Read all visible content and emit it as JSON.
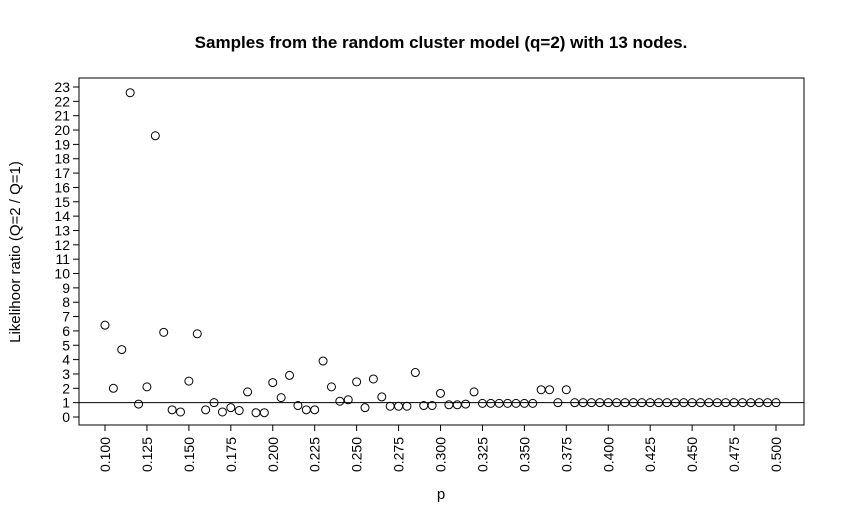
{
  "chart_data": {
    "type": "scatter",
    "title": "Samples from the random cluster model (q=2) with 13 nodes.",
    "xlabel": "p",
    "ylabel": "Likelihoor ratio (Q=2 / Q=1)",
    "xlim": [
      0.1,
      0.5
    ],
    "ylim": [
      0,
      23
    ],
    "x_ticks": [
      "0.100",
      "0.125",
      "0.150",
      "0.175",
      "0.200",
      "0.225",
      "0.250",
      "0.275",
      "0.300",
      "0.325",
      "0.350",
      "0.375",
      "0.400",
      "0.425",
      "0.450",
      "0.475",
      "0.500"
    ],
    "y_ticks": [
      "0",
      "1",
      "2",
      "3",
      "4",
      "5",
      "6",
      "7",
      "8",
      "9",
      "10",
      "11",
      "12",
      "13",
      "14",
      "15",
      "16",
      "17",
      "18",
      "19",
      "20",
      "21",
      "22",
      "23"
    ],
    "reference_line_y": 1,
    "marker": "open-circle",
    "grid": false,
    "series": [
      {
        "x": [
          0.1,
          0.105,
          0.11,
          0.115,
          0.12,
          0.125,
          0.13,
          0.135,
          0.14,
          0.145,
          0.15,
          0.155,
          0.16,
          0.165,
          0.17,
          0.175,
          0.18,
          0.185,
          0.19,
          0.195,
          0.2,
          0.205,
          0.21,
          0.215,
          0.22,
          0.225,
          0.23,
          0.235,
          0.24,
          0.245,
          0.25,
          0.255,
          0.26,
          0.265,
          0.27,
          0.275,
          0.28,
          0.285,
          0.29,
          0.295,
          0.3,
          0.305,
          0.31,
          0.315,
          0.32,
          0.325,
          0.33,
          0.335,
          0.34,
          0.345,
          0.35,
          0.355,
          0.36,
          0.365,
          0.37,
          0.375,
          0.38,
          0.385,
          0.39,
          0.395,
          0.4,
          0.405,
          0.41,
          0.415,
          0.42,
          0.425,
          0.43,
          0.435,
          0.44,
          0.445,
          0.45,
          0.455,
          0.46,
          0.465,
          0.47,
          0.475,
          0.48,
          0.485,
          0.49,
          0.495,
          0.5
        ],
        "y": [
          6.4,
          2.0,
          4.7,
          22.6,
          0.9,
          2.1,
          19.6,
          5.9,
          0.5,
          0.35,
          2.5,
          5.8,
          0.5,
          1.0,
          0.35,
          0.65,
          0.45,
          1.75,
          0.3,
          0.3,
          2.4,
          1.35,
          2.9,
          0.8,
          0.5,
          0.5,
          3.9,
          2.1,
          1.1,
          1.2,
          2.45,
          0.65,
          2.65,
          1.4,
          0.75,
          0.75,
          0.75,
          3.1,
          0.8,
          0.8,
          1.65,
          0.85,
          0.85,
          0.9,
          1.75,
          0.95,
          0.95,
          0.95,
          0.95,
          0.95,
          0.95,
          0.95,
          1.9,
          1.9,
          1.0,
          1.9,
          1.0,
          1.0,
          1.0,
          1.0,
          1.0,
          1.0,
          1.0,
          1.0,
          1.0,
          1.0,
          1.0,
          1.0,
          1.0,
          1.0,
          1.0,
          1.0,
          1.0,
          1.0,
          1.0,
          1.0,
          1.0,
          1.0,
          1.0,
          1.0,
          1.0
        ]
      }
    ]
  }
}
